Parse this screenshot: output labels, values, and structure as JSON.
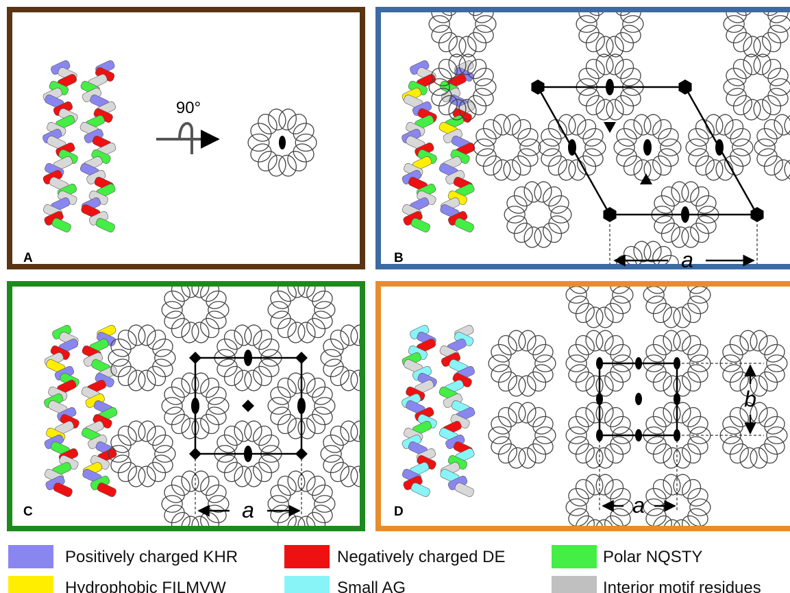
{
  "panels": [
    {
      "label": "A",
      "annotations": [
        "90°"
      ]
    },
    {
      "label": "B",
      "annotations": [
        "a"
      ]
    },
    {
      "label": "C",
      "annotations": [
        "a"
      ]
    },
    {
      "label": "D",
      "annotations": [
        "a",
        "b"
      ]
    }
  ],
  "legend": [
    {
      "label": "Positively charged KHR",
      "color": "#8a86f0"
    },
    {
      "label": "Negatively charged DE",
      "color": "#ee1111"
    },
    {
      "label": "Polar NQSTY",
      "color": "#44ee44"
    },
    {
      "label": "Hydrophobic FILMVW",
      "color": "#ffee00"
    },
    {
      "label": "Small AG",
      "color": "#88f4f8"
    },
    {
      "label": "Interior motif residues",
      "color": "#c0c0c0"
    }
  ]
}
